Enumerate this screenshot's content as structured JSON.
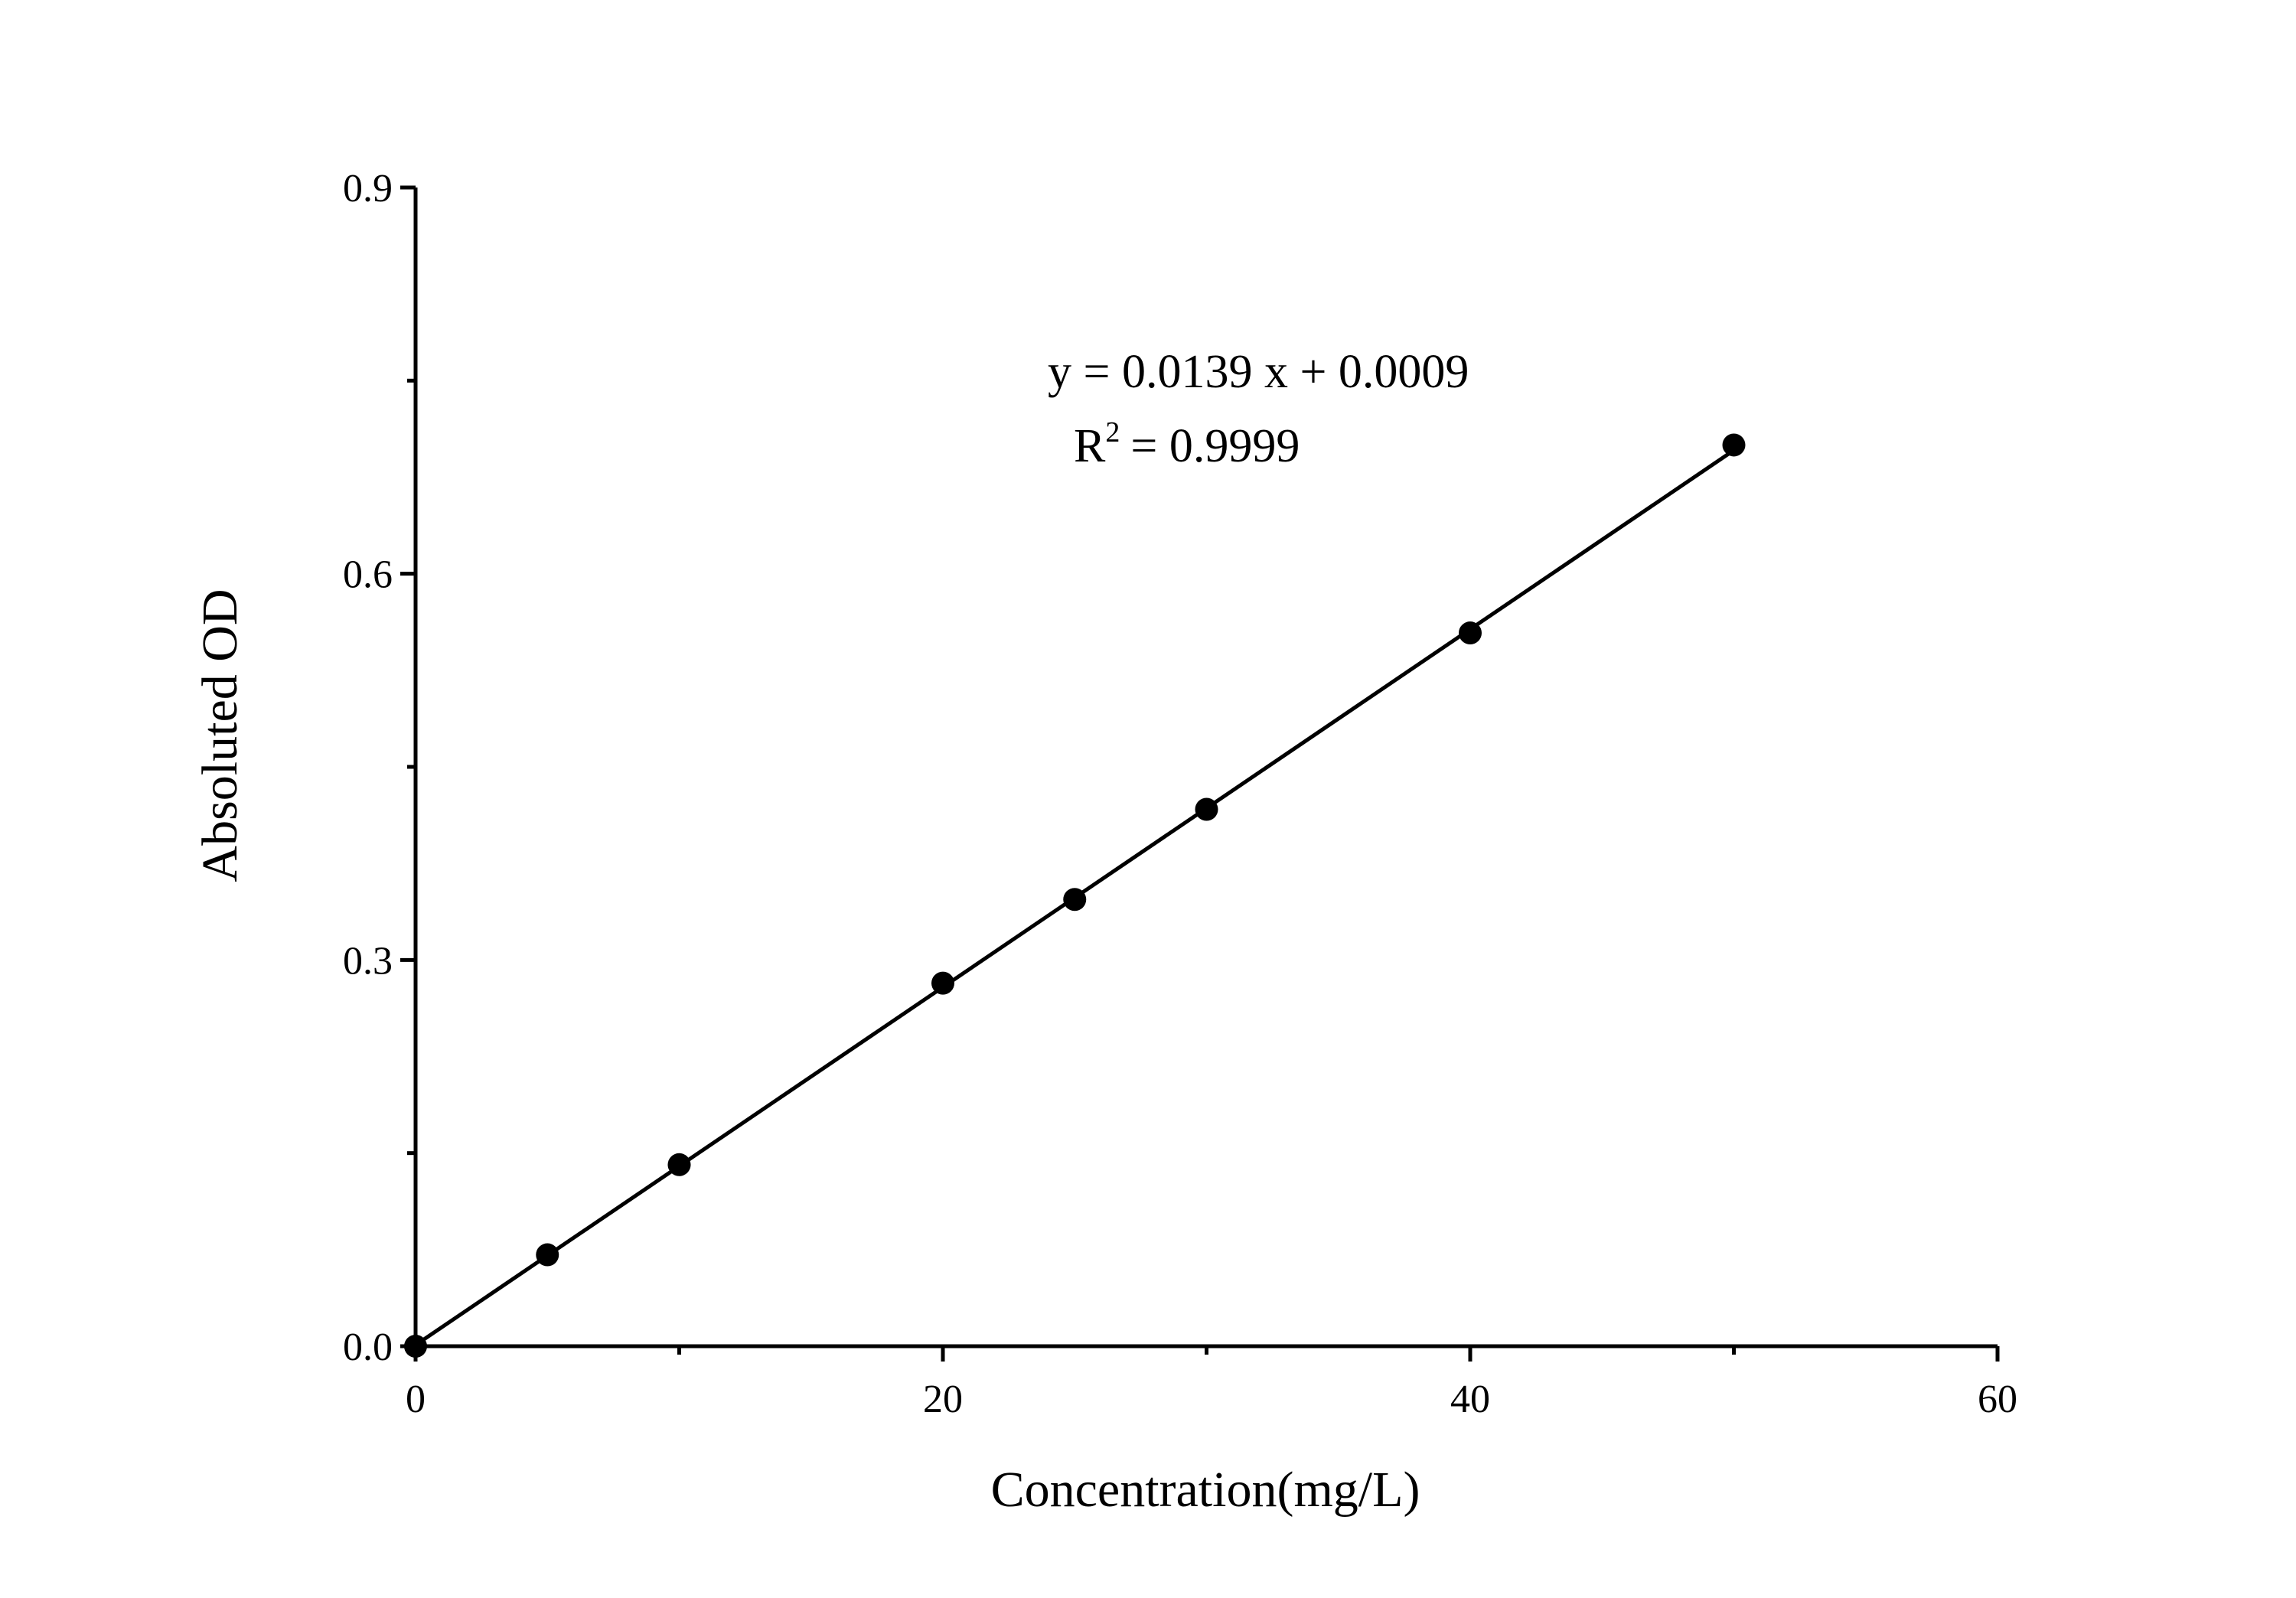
{
  "chart_data": {
    "type": "scatter",
    "x_label": "Concentration(mg/L)",
    "y_label": "Absoluted OD",
    "series": [
      {
        "name": "data",
        "color": "#000000",
        "x": [
          0,
          5,
          10,
          20,
          25,
          30,
          40,
          50
        ],
        "values": [
          0,
          0.071,
          0.141,
          0.282,
          0.347,
          0.417,
          0.554,
          0.7
        ]
      }
    ],
    "fit_line": {
      "color": "#000000",
      "x": [
        0,
        50
      ],
      "values": [
        0.0009,
        0.6959
      ]
    },
    "annotation": {
      "equation": "y = 0.0139 x + 0.0009",
      "r2_base": "R",
      "r2_sup": "2",
      "r2_value": "= 0.9999"
    },
    "xlim": [
      0,
      60
    ],
    "ylim": [
      0,
      0.9
    ],
    "xticks": [
      0,
      20,
      40,
      60
    ],
    "yticks": [
      {
        "value": 0,
        "label": "0.0"
      },
      0.3,
      0.6,
      0.9
    ],
    "xminor": [
      10,
      30,
      50
    ],
    "yminor": [
      0.15,
      0.45,
      0.75
    ],
    "grid": false
  }
}
